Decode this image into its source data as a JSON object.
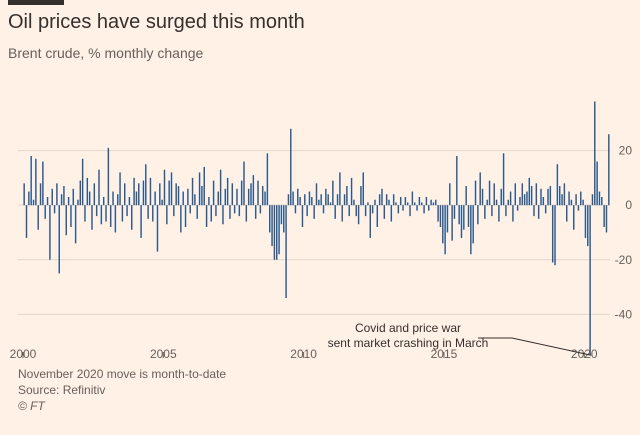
{
  "header": {
    "title": "Oil prices have surged this month",
    "subtitle": "Brent crude, % monthly change"
  },
  "footer": {
    "note": "November 2020 move is month-to-date",
    "source": "Source: Refinitiv",
    "credit": "© FT"
  },
  "colors": {
    "bar": "#2b5a8e",
    "background": "#fff1e5",
    "grid": "#e2d6c9",
    "text": "#66605c"
  },
  "chart_data": {
    "type": "bar",
    "title": "Oil prices have surged this month",
    "subtitle": "Brent crude, % monthly change",
    "ylim": [
      -56,
      40
    ],
    "xlim": [
      2000.0,
      2020.917
    ],
    "y_ticks": [
      20,
      0,
      -20,
      -40
    ],
    "y_tick_labels": [
      "20",
      "0",
      "-20",
      "-40"
    ],
    "x_ticks": [
      2000,
      2005,
      2010,
      2015,
      2020
    ],
    "x_tick_labels": [
      "2000",
      "2005",
      "2010",
      "2015",
      "2020"
    ],
    "grid": true,
    "annotation": {
      "lines": [
        "Covid and price war",
        "sent market crashing in March"
      ],
      "target": {
        "x": 2020.25,
        "y": -55
      }
    },
    "series": [
      {
        "start": "2000-01",
        "frequency": "monthly",
        "values": [
          8,
          -12,
          5,
          18,
          2,
          17,
          -9,
          8,
          16,
          -5,
          3,
          -20,
          6,
          -3,
          8,
          -25,
          4,
          7,
          -11,
          3,
          -8,
          6,
          -14,
          2,
          9,
          17,
          -6,
          10,
          5,
          -9,
          8,
          -4,
          13,
          -7,
          3,
          -6,
          21,
          -8,
          5,
          -10,
          4,
          12,
          -6,
          8,
          -4,
          3,
          -9,
          10,
          5,
          8,
          -12,
          9,
          15,
          -5,
          10,
          -6,
          5,
          -17,
          8,
          2,
          13,
          -7,
          9,
          12,
          -4,
          8,
          7,
          -10,
          5,
          -8,
          6,
          -3,
          10,
          4,
          -5,
          12,
          7,
          14,
          -8,
          3,
          -6,
          9,
          -4,
          5,
          13,
          -7,
          6,
          10,
          -5,
          8,
          -3,
          6,
          -4,
          9,
          16,
          -6,
          6,
          8,
          11,
          -5,
          9,
          -3,
          7,
          5,
          19,
          -10,
          -15,
          -20,
          -20,
          -18,
          -7,
          -10,
          -34,
          4,
          28,
          5,
          -3,
          6,
          3,
          -8,
          4,
          -4,
          5,
          3,
          -5,
          8,
          2,
          4,
          -3,
          6,
          4,
          1,
          9,
          -5,
          4,
          12,
          -6,
          4,
          7,
          -4,
          10,
          2,
          -4,
          -7,
          7,
          12,
          -4,
          1,
          -12,
          -3,
          2,
          -8,
          4,
          6,
          -5,
          4,
          2,
          -6,
          4,
          1,
          -3,
          3,
          -2,
          3,
          1,
          -4,
          5,
          1,
          -2,
          3,
          1,
          -3,
          3,
          -2,
          2,
          1,
          2,
          -6,
          -8,
          -14,
          -18,
          -10,
          8,
          -13,
          -5,
          18,
          -7,
          -12,
          -9,
          7,
          -8,
          -18,
          -14,
          9,
          -7,
          12,
          6,
          -5,
          2,
          9,
          -4,
          8,
          2,
          -6,
          6,
          19,
          -4,
          2,
          5,
          -6,
          8,
          -2,
          3,
          8,
          4,
          5,
          10,
          7,
          -4,
          8,
          -5,
          6,
          3,
          -3,
          6,
          7,
          -21,
          -22,
          15,
          7,
          4,
          8,
          -6,
          5,
          2,
          -9,
          4,
          -2,
          5,
          2,
          -12,
          -15,
          -55,
          4,
          38,
          16,
          5,
          3,
          -8,
          -10,
          26
        ]
      }
    ]
  }
}
